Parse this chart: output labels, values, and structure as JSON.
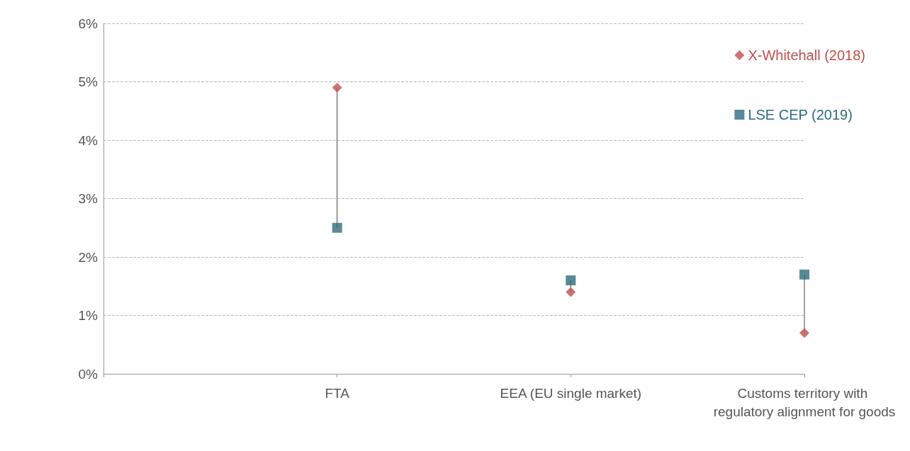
{
  "chart_data": {
    "type": "scatter",
    "categories": [
      null,
      "FTA",
      "EEA (EU single market)",
      "Customs territory with regulatory alignment for goods"
    ],
    "series": [
      {
        "name": "X-Whitehall (2018)",
        "color": "#c0504d",
        "marker": "diamond",
        "values": [
          null,
          4.9,
          1.4,
          0.7
        ]
      },
      {
        "name": "LSE CEP (2019)",
        "color": "#2e6b80",
        "marker": "square",
        "values": [
          null,
          2.5,
          1.6,
          1.7
        ]
      }
    ],
    "ylim": [
      0,
      6
    ],
    "yticks": [
      {
        "value": 0,
        "label": "0%"
      },
      {
        "value": 1,
        "label": "1%"
      },
      {
        "value": 2,
        "label": "2%"
      },
      {
        "value": 3,
        "label": "3%"
      },
      {
        "value": 4,
        "label": "4%"
      },
      {
        "value": 5,
        "label": "5%"
      },
      {
        "value": 6,
        "label": "6%"
      }
    ],
    "grid": "y",
    "legend": "top right"
  }
}
